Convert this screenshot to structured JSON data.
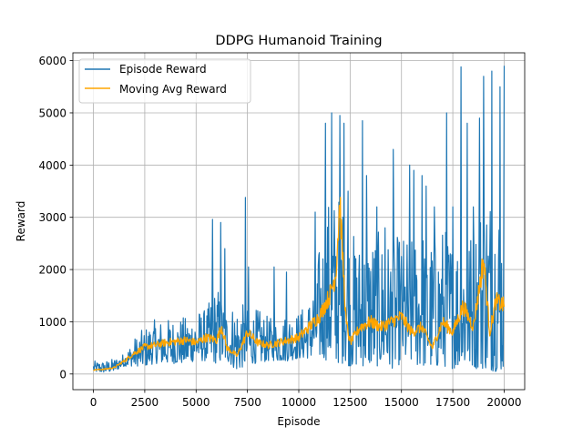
{
  "chart_data": {
    "type": "line",
    "title": "DDPG Humanoid Training",
    "xlabel": "Episode",
    "ylabel": "Reward",
    "xlim": [
      -1000,
      21000
    ],
    "ylim": [
      -300,
      6150
    ],
    "xticks": [
      0,
      2500,
      5000,
      7500,
      10000,
      12500,
      15000,
      17500,
      20000
    ],
    "yticks": [
      0,
      1000,
      2000,
      3000,
      4000,
      5000,
      6000
    ],
    "grid": true,
    "legend_position": "top-left",
    "colors": {
      "episode_reward": "#1f77b4",
      "moving_avg": "#ffa500"
    },
    "series": [
      {
        "name": "Episode Reward",
        "color": "#1f77b4",
        "envelope": {
          "x": [
            0,
            500,
            1000,
            1500,
            2000,
            2500,
            3000,
            3500,
            4000,
            4500,
            5000,
            5500,
            6000,
            6500,
            7000,
            7500,
            8000,
            8500,
            9000,
            9500,
            10000,
            10500,
            11000,
            11500,
            12000,
            12500,
            13000,
            13500,
            14000,
            14500,
            15000,
            15500,
            16000,
            16500,
            17000,
            17500,
            18000,
            18500,
            19000,
            19500,
            20000
          ],
          "low": [
            40,
            30,
            50,
            150,
            150,
            150,
            200,
            200,
            200,
            200,
            250,
            250,
            200,
            250,
            50,
            200,
            200,
            250,
            250,
            250,
            300,
            300,
            300,
            250,
            200,
            150,
            150,
            150,
            150,
            100,
            200,
            150,
            150,
            100,
            150,
            100,
            100,
            100,
            100,
            50,
            50
          ],
          "high": [
            250,
            250,
            300,
            400,
            700,
            900,
            1050,
            1050,
            1100,
            1100,
            1250,
            1250,
            1750,
            1250,
            1450,
            1250,
            1250,
            1100,
            1050,
            1200,
            1200,
            1450,
            2450,
            3500,
            3500,
            2800,
            2600,
            2800,
            2700,
            2600,
            2700,
            2600,
            2900,
            2600,
            2900,
            2700,
            2900,
            2800,
            3700,
            3800,
            3300
          ]
        },
        "spikes": [
          [
            5800,
            2960
          ],
          [
            6200,
            2900
          ],
          [
            6400,
            2400
          ],
          [
            7400,
            3380
          ],
          [
            7550,
            2050
          ],
          [
            8800,
            2050
          ],
          [
            9400,
            1950
          ],
          [
            10800,
            3100
          ],
          [
            11300,
            4800
          ],
          [
            11600,
            5000
          ],
          [
            12000,
            4950
          ],
          [
            12200,
            4800
          ],
          [
            12400,
            3500
          ],
          [
            13100,
            4850
          ],
          [
            13300,
            3800
          ],
          [
            13800,
            3200
          ],
          [
            14200,
            2800
          ],
          [
            14600,
            4300
          ],
          [
            15400,
            4000
          ],
          [
            15600,
            3900
          ],
          [
            16000,
            3800
          ],
          [
            16200,
            3600
          ],
          [
            16600,
            3200
          ],
          [
            17200,
            5000
          ],
          [
            17500,
            3200
          ],
          [
            17900,
            5880
          ],
          [
            18200,
            4800
          ],
          [
            18500,
            3200
          ],
          [
            18800,
            4900
          ],
          [
            19000,
            5700
          ],
          [
            19400,
            5800
          ],
          [
            19800,
            5500
          ],
          [
            20000,
            5900
          ]
        ]
      },
      {
        "name": "Moving Avg Reward",
        "color": "#ffa500",
        "x": [
          0,
          500,
          1000,
          1500,
          2000,
          2500,
          3000,
          3500,
          4000,
          4500,
          5000,
          5500,
          6000,
          6250,
          6500,
          7000,
          7500,
          8000,
          8500,
          9000,
          9500,
          10000,
          10500,
          11000,
          11500,
          11800,
          12000,
          12300,
          12500,
          13000,
          13500,
          14000,
          14500,
          15000,
          15500,
          16000,
          16500,
          17000,
          17500,
          18000,
          18500,
          19000,
          19300,
          19600,
          20000
        ],
        "values": [
          80,
          90,
          120,
          250,
          400,
          520,
          550,
          600,
          620,
          650,
          600,
          700,
          650,
          900,
          500,
          350,
          800,
          600,
          550,
          600,
          650,
          700,
          900,
          1100,
          1500,
          1900,
          3300,
          1000,
          600,
          900,
          1000,
          900,
          1000,
          1100,
          800,
          900,
          500,
          1000,
          800,
          1300,
          900,
          2200,
          800,
          1400,
          1300
        ]
      }
    ]
  }
}
